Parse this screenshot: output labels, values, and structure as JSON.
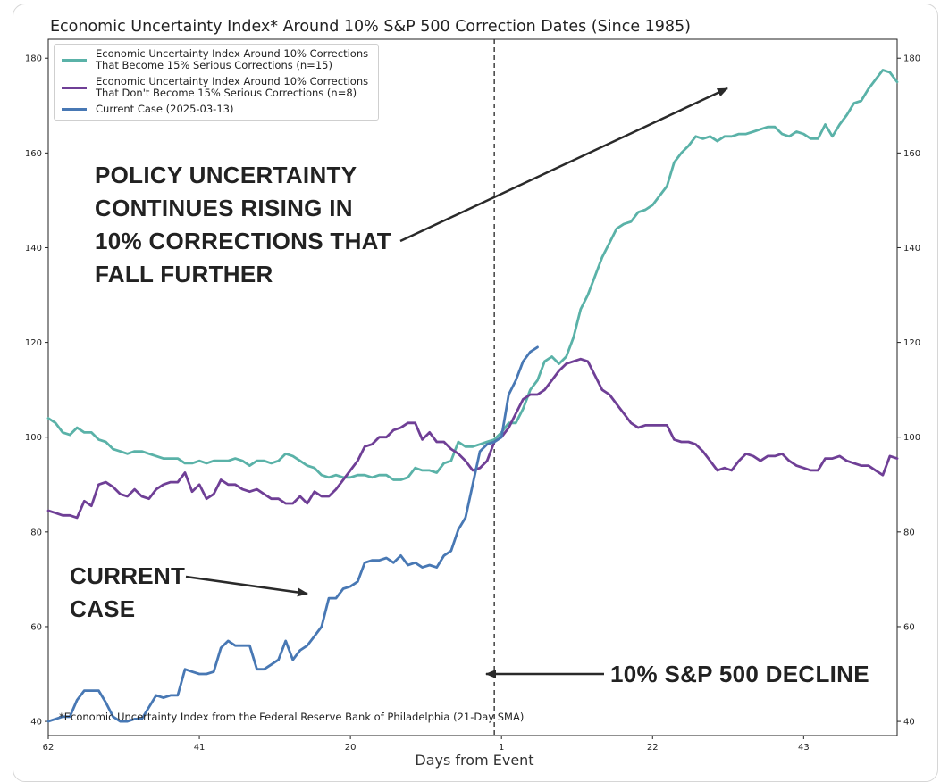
{
  "chart_data": {
    "type": "line",
    "title": "Economic Uncertainty Index* Around 10% S&P 500 Correction Dates (Since 1985)",
    "xlabel": "Days from Event",
    "ylabel": "",
    "xlim": [
      -62,
      56
    ],
    "ylim": [
      37,
      184
    ],
    "x_ticks": [
      -62,
      -41,
      -20,
      1,
      22,
      43
    ],
    "x_tick_labels": [
      "62",
      "41",
      "20",
      "1",
      "22",
      "43"
    ],
    "y_ticks": [
      40,
      60,
      80,
      100,
      120,
      140,
      160,
      180
    ],
    "legend_position": "top-left",
    "event_line_x": 0,
    "series": [
      {
        "name": "Economic Uncertainty Index Around 10% Corrections\nThat Become 15% Serious Corrections (n=15)",
        "color": "#5ab2a8",
        "points": [
          [
            -62,
            104
          ],
          [
            -61,
            103
          ],
          [
            -60,
            101
          ],
          [
            -59,
            100.5
          ],
          [
            -58,
            102
          ],
          [
            -57,
            101
          ],
          [
            -56,
            101
          ],
          [
            -55,
            99.5
          ],
          [
            -54,
            99
          ],
          [
            -53,
            97.5
          ],
          [
            -52,
            97
          ],
          [
            -51,
            96.5
          ],
          [
            -50,
            97
          ],
          [
            -49,
            97
          ],
          [
            -48,
            96.5
          ],
          [
            -47,
            96
          ],
          [
            -46,
            95.5
          ],
          [
            -45,
            95.5
          ],
          [
            -44,
            95.5
          ],
          [
            -43,
            94.5
          ],
          [
            -42,
            94.5
          ],
          [
            -41,
            95
          ],
          [
            -40,
            94.5
          ],
          [
            -39,
            95
          ],
          [
            -38,
            95
          ],
          [
            -37,
            95
          ],
          [
            -36,
            95.5
          ],
          [
            -35,
            95
          ],
          [
            -34,
            94
          ],
          [
            -33,
            95
          ],
          [
            -32,
            95
          ],
          [
            -31,
            94.5
          ],
          [
            -30,
            95
          ],
          [
            -29,
            96.5
          ],
          [
            -28,
            96
          ],
          [
            -27,
            95
          ],
          [
            -26,
            94
          ],
          [
            -25,
            93.5
          ],
          [
            -24,
            92
          ],
          [
            -23,
            91.5
          ],
          [
            -22,
            92
          ],
          [
            -21,
            91.5
          ],
          [
            -20,
            91.5
          ],
          [
            -19,
            92
          ],
          [
            -18,
            92
          ],
          [
            -17,
            91.5
          ],
          [
            -16,
            92
          ],
          [
            -15,
            92
          ],
          [
            -14,
            91
          ],
          [
            -13,
            91
          ],
          [
            -12,
            91.5
          ],
          [
            -11,
            93.5
          ],
          [
            -10,
            93
          ],
          [
            -9,
            93
          ],
          [
            -8,
            92.5
          ],
          [
            -7,
            94.5
          ],
          [
            -6,
            95
          ],
          [
            -5,
            99
          ],
          [
            -4,
            98
          ],
          [
            -3,
            98
          ],
          [
            -2,
            98.5
          ],
          [
            -1,
            99
          ],
          [
            0,
            99.5
          ],
          [
            1,
            101
          ],
          [
            2,
            103
          ],
          [
            3,
            103
          ],
          [
            4,
            106
          ],
          [
            5,
            110
          ],
          [
            6,
            112
          ],
          [
            7,
            116
          ],
          [
            8,
            117
          ],
          [
            9,
            115.5
          ],
          [
            10,
            117
          ],
          [
            11,
            121
          ],
          [
            12,
            127
          ],
          [
            13,
            130
          ],
          [
            14,
            134
          ],
          [
            15,
            138
          ],
          [
            16,
            141
          ],
          [
            17,
            144
          ],
          [
            18,
            145
          ],
          [
            19,
            145.5
          ],
          [
            20,
            147.5
          ],
          [
            21,
            148
          ],
          [
            22,
            149
          ],
          [
            23,
            151
          ],
          [
            24,
            153
          ],
          [
            25,
            158
          ],
          [
            26,
            160
          ],
          [
            27,
            161.5
          ],
          [
            28,
            163.5
          ],
          [
            29,
            163
          ],
          [
            30,
            163.5
          ],
          [
            31,
            162.5
          ],
          [
            32,
            163.5
          ],
          [
            33,
            163.5
          ],
          [
            34,
            164
          ],
          [
            35,
            164
          ],
          [
            36,
            164.5
          ],
          [
            37,
            165
          ],
          [
            38,
            165.5
          ],
          [
            39,
            165.5
          ],
          [
            40,
            164
          ],
          [
            41,
            163.5
          ],
          [
            42,
            164.5
          ],
          [
            43,
            164
          ],
          [
            44,
            163
          ],
          [
            45,
            163
          ],
          [
            46,
            166
          ],
          [
            47,
            163.5
          ],
          [
            48,
            166
          ],
          [
            49,
            168
          ],
          [
            50,
            170.5
          ],
          [
            51,
            171
          ],
          [
            52,
            173.5
          ],
          [
            53,
            175.5
          ],
          [
            54,
            177.5
          ],
          [
            55,
            177
          ],
          [
            56,
            175
          ]
        ]
      },
      {
        "name": "Economic Uncertainty Index Around 10% Corrections\nThat Don't Become 15% Serious Corrections (n=8)",
        "color": "#6f3f96",
        "points": [
          [
            -62,
            84.5
          ],
          [
            -61,
            84
          ],
          [
            -60,
            83.5
          ],
          [
            -59,
            83.5
          ],
          [
            -58,
            83
          ],
          [
            -57,
            86.5
          ],
          [
            -56,
            85.5
          ],
          [
            -55,
            90
          ],
          [
            -54,
            90.5
          ],
          [
            -53,
            89.5
          ],
          [
            -52,
            88
          ],
          [
            -51,
            87.5
          ],
          [
            -50,
            89
          ],
          [
            -49,
            87.5
          ],
          [
            -48,
            87
          ],
          [
            -47,
            89
          ],
          [
            -46,
            90
          ],
          [
            -45,
            90.5
          ],
          [
            -44,
            90.5
          ],
          [
            -43,
            92.5
          ],
          [
            -42,
            88.5
          ],
          [
            -41,
            90
          ],
          [
            -40,
            87
          ],
          [
            -39,
            88
          ],
          [
            -38,
            91
          ],
          [
            -37,
            90
          ],
          [
            -36,
            90
          ],
          [
            -35,
            89
          ],
          [
            -34,
            88.5
          ],
          [
            -33,
            89
          ],
          [
            -32,
            88
          ],
          [
            -31,
            87
          ],
          [
            -30,
            87
          ],
          [
            -29,
            86
          ],
          [
            -28,
            86
          ],
          [
            -27,
            87.5
          ],
          [
            -26,
            86
          ],
          [
            -25,
            88.5
          ],
          [
            -24,
            87.5
          ],
          [
            -23,
            87.5
          ],
          [
            -22,
            89
          ],
          [
            -21,
            91
          ],
          [
            -20,
            93
          ],
          [
            -19,
            95
          ],
          [
            -18,
            98
          ],
          [
            -17,
            98.5
          ],
          [
            -16,
            100
          ],
          [
            -15,
            100
          ],
          [
            -14,
            101.5
          ],
          [
            -13,
            102
          ],
          [
            -12,
            103
          ],
          [
            -11,
            103
          ],
          [
            -10,
            99.5
          ],
          [
            -9,
            101
          ],
          [
            -8,
            99
          ],
          [
            -7,
            99
          ],
          [
            -6,
            97.5
          ],
          [
            -5,
            96.5
          ],
          [
            -4,
            95
          ],
          [
            -3,
            93
          ],
          [
            -2,
            93.5
          ],
          [
            -1,
            95
          ],
          [
            0,
            99
          ],
          [
            1,
            100
          ],
          [
            2,
            102
          ],
          [
            3,
            105
          ],
          [
            4,
            108
          ],
          [
            5,
            109
          ],
          [
            6,
            109
          ],
          [
            7,
            110
          ],
          [
            8,
            112
          ],
          [
            9,
            114
          ],
          [
            10,
            115.5
          ],
          [
            11,
            116
          ],
          [
            12,
            116.5
          ],
          [
            13,
            116
          ],
          [
            14,
            113
          ],
          [
            15,
            110
          ],
          [
            16,
            109
          ],
          [
            17,
            107
          ],
          [
            18,
            105
          ],
          [
            19,
            103
          ],
          [
            20,
            102
          ],
          [
            21,
            102.5
          ],
          [
            22,
            102.5
          ],
          [
            23,
            102.5
          ],
          [
            24,
            102.5
          ],
          [
            25,
            99.5
          ],
          [
            26,
            99
          ],
          [
            27,
            99
          ],
          [
            28,
            98.5
          ],
          [
            29,
            97
          ],
          [
            30,
            95
          ],
          [
            31,
            93
          ],
          [
            32,
            93.5
          ],
          [
            33,
            93
          ],
          [
            34,
            95
          ],
          [
            35,
            96.5
          ],
          [
            36,
            96
          ],
          [
            37,
            95
          ],
          [
            38,
            96
          ],
          [
            39,
            96
          ],
          [
            40,
            96.5
          ],
          [
            41,
            95
          ],
          [
            42,
            94
          ],
          [
            43,
            93.5
          ],
          [
            44,
            93
          ],
          [
            45,
            93
          ],
          [
            46,
            95.5
          ],
          [
            47,
            95.5
          ],
          [
            48,
            96
          ],
          [
            49,
            95
          ],
          [
            50,
            94.5
          ],
          [
            51,
            94
          ],
          [
            52,
            94
          ],
          [
            53,
            93
          ],
          [
            54,
            92
          ],
          [
            55,
            96
          ],
          [
            56,
            95.5
          ]
        ]
      },
      {
        "name": "Current Case (2025-03-13)",
        "color": "#4878b4",
        "points": [
          [
            -62,
            40
          ],
          [
            -61,
            40.5
          ],
          [
            -60,
            41
          ],
          [
            -59,
            41
          ],
          [
            -58,
            44.5
          ],
          [
            -57,
            46.5
          ],
          [
            -56,
            46.5
          ],
          [
            -55,
            46.5
          ],
          [
            -54,
            44
          ],
          [
            -53,
            41
          ],
          [
            -52,
            40
          ],
          [
            -51,
            40
          ],
          [
            -50,
            40.5
          ],
          [
            -49,
            40.5
          ],
          [
            -48,
            43
          ],
          [
            -47,
            45.5
          ],
          [
            -46,
            45
          ],
          [
            -45,
            45.5
          ],
          [
            -44,
            45.5
          ],
          [
            -43,
            51
          ],
          [
            -42,
            50.5
          ],
          [
            -41,
            50
          ],
          [
            -40,
            50
          ],
          [
            -39,
            50.5
          ],
          [
            -38,
            55.5
          ],
          [
            -37,
            57
          ],
          [
            -36,
            56
          ],
          [
            -35,
            56
          ],
          [
            -34,
            56
          ],
          [
            -33,
            51
          ],
          [
            -32,
            51
          ],
          [
            -31,
            52
          ],
          [
            -30,
            53
          ],
          [
            -29,
            57
          ],
          [
            -28,
            53
          ],
          [
            -27,
            55
          ],
          [
            -26,
            56
          ],
          [
            -25,
            58
          ],
          [
            -24,
            60
          ],
          [
            -23,
            66
          ],
          [
            -22,
            66
          ],
          [
            -21,
            68
          ],
          [
            -20,
            68.5
          ],
          [
            -19,
            69.5
          ],
          [
            -18,
            73.5
          ],
          [
            -17,
            74
          ],
          [
            -16,
            74
          ],
          [
            -15,
            74.5
          ],
          [
            -14,
            73.5
          ],
          [
            -13,
            75
          ],
          [
            -12,
            73
          ],
          [
            -11,
            73.5
          ],
          [
            -10,
            72.5
          ],
          [
            -9,
            73
          ],
          [
            -8,
            72.5
          ],
          [
            -7,
            75
          ],
          [
            -6,
            76
          ],
          [
            -5,
            80.5
          ],
          [
            -4,
            83
          ],
          [
            -3,
            90
          ],
          [
            -2,
            97
          ],
          [
            -1,
            98.5
          ],
          [
            0,
            99
          ],
          [
            1,
            100
          ],
          [
            2,
            109
          ],
          [
            3,
            112
          ],
          [
            4,
            116
          ],
          [
            5,
            118
          ],
          [
            6,
            119
          ]
        ]
      }
    ],
    "annotations": [
      {
        "text": "POLICY UNCERTAINTY\nCONTINUES RISING IN\n10% CORRECTIONS THAT\nFALL FURTHER"
      },
      {
        "text": "CURRENT\nCASE"
      },
      {
        "text": "10% S&P 500 DECLINE"
      }
    ],
    "footnote": "*Economic Uncertainty Index from the Federal Reserve Bank of Philadelphia (21-Day SMA)"
  }
}
